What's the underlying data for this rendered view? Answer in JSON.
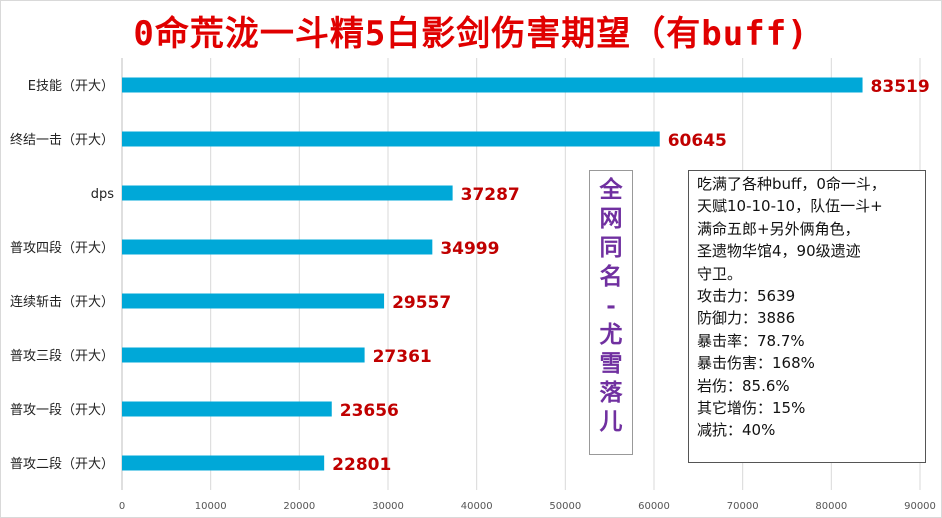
{
  "title": "0命荒泷一斗精5白影剑伤害期望（有buff)",
  "chart_data": {
    "type": "bar",
    "orientation": "horizontal",
    "categories": [
      "E技能（开大）",
      "终结一击（开大）",
      "dps",
      "普攻四段（开大）",
      "连续斩击（开大）",
      "普攻三段（开大）",
      "普攻一段（开大）",
      "普攻二段（开大）"
    ],
    "values": [
      83519,
      60645,
      37287,
      34999,
      29557,
      27361,
      23656,
      22801
    ],
    "value_labels": [
      "83519",
      "60645",
      "37287",
      "34999",
      "29557",
      "27361",
      "23656",
      "22801"
    ],
    "xlim": [
      0,
      90000
    ],
    "xticks": [
      0,
      10000,
      20000,
      30000,
      40000,
      50000,
      60000,
      70000,
      80000,
      90000
    ],
    "xtick_labels": [
      "0",
      "10000",
      "20000",
      "30000",
      "40000",
      "50000",
      "60000",
      "70000",
      "80000",
      "90000"
    ],
    "grid": true,
    "bar_color": "#00a8d8",
    "value_label_color": "#c00000"
  },
  "watermark": {
    "chars": [
      "全",
      "网",
      "同",
      "名",
      "-",
      "尤",
      "雪",
      "落",
      "儿"
    ]
  },
  "notes": {
    "lines": [
      "吃满了各种buff，0命一斗，",
      "天赋10-10-10，队伍一斗+",
      "满命五郎+另外俩角色，",
      "圣遗物华馆4，90级遗迹",
      "守卫。",
      "攻击力：5639",
      "防御力：3886",
      "暴击率：78.7%",
      "暴击伤害：168%",
      "岩伤：85.6%",
      "其它增伤：15%",
      "减抗：40%"
    ]
  },
  "colors": {
    "title": "#e00000",
    "watermark": "#7030a0"
  }
}
